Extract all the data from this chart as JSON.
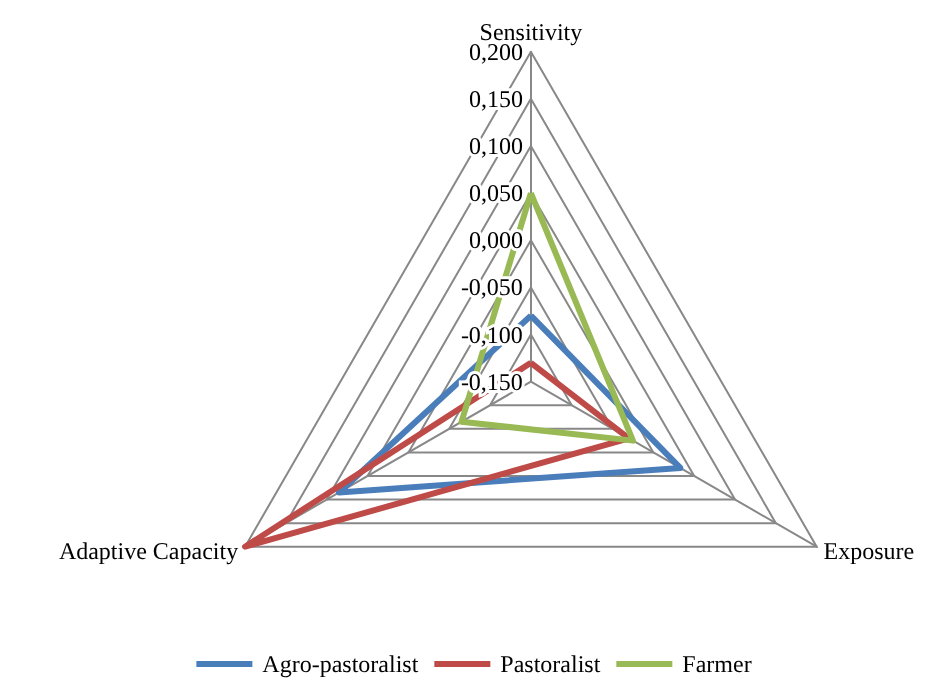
{
  "chart_data": {
    "type": "radar",
    "categories": [
      "Sensitivity",
      "Exposure",
      "Adaptive Capacity"
    ],
    "ylim": [
      -0.15,
      0.2
    ],
    "yticks": [
      {
        "value": -0.15,
        "label": "-0,150"
      },
      {
        "value": -0.1,
        "label": "-0,100"
      },
      {
        "value": -0.05,
        "label": "-0,050"
      },
      {
        "value": 0,
        "label": "0,000"
      },
      {
        "value": 0.05,
        "label": "0,050"
      },
      {
        "value": 0.1,
        "label": "0,100"
      },
      {
        "value": 0.15,
        "label": "0,150"
      },
      {
        "value": 0.2,
        "label": "0,200"
      }
    ],
    "series": [
      {
        "name": "Agro-pastoralist",
        "color": "#4a7ebb",
        "values": [
          -0.08,
          0.033,
          0.085
        ]
      },
      {
        "name": "Pastoralist",
        "color": "#be4b48",
        "values": [
          -0.13,
          -0.03,
          0.2
        ]
      },
      {
        "name": "Farmer",
        "color": "#98b954",
        "values": [
          0.05,
          -0.025,
          -0.065
        ]
      }
    ],
    "legend": "bottom",
    "grid": true
  }
}
